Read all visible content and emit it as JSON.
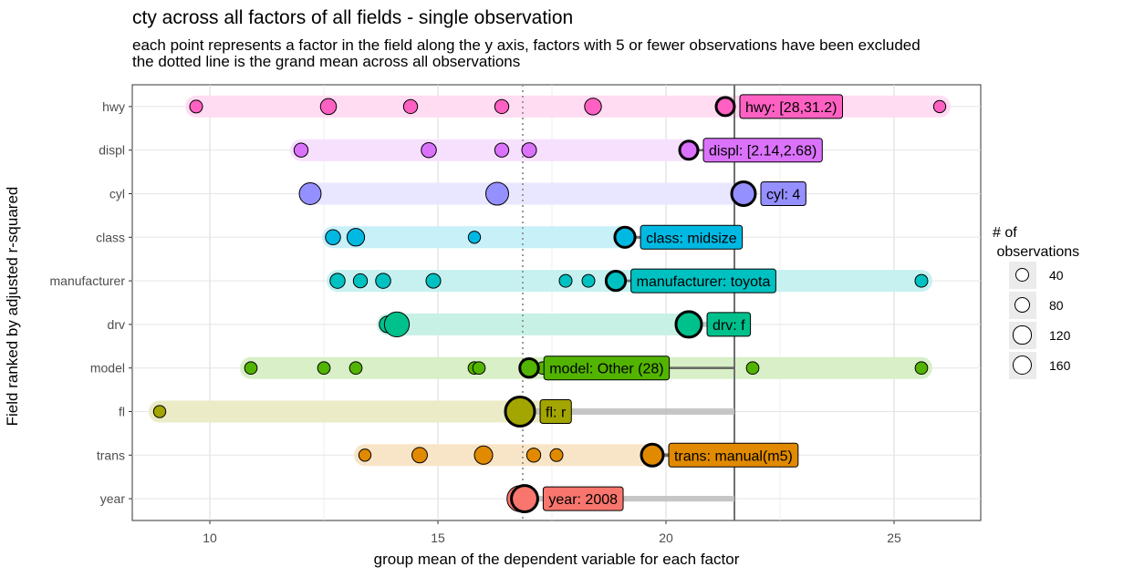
{
  "title": "cty across all factors of all fields - single observation",
  "subtitle": "each point represents a factor in the field along the y axis, factors with 5 or fewer observations have been excluded\nthe dotted line is the grand mean across all observations",
  "chart_data": {
    "type": "scatter",
    "xlabel": "group mean of the dependent variable for each factor",
    "ylabel": "Field ranked by adjusted r-squared",
    "xlim": [
      8.3,
      26.9
    ],
    "xticks": [
      10,
      15,
      20,
      25
    ],
    "grand_mean": 16.86,
    "observation_value": 21.5,
    "grid": true,
    "legend_position": "right",
    "legend": {
      "title": "# of\n observations",
      "entries": [
        {
          "label": "40",
          "value": 40
        },
        {
          "label": "80",
          "value": 80
        },
        {
          "label": "120",
          "value": 120
        },
        {
          "label": "160",
          "value": 160
        }
      ]
    },
    "fields": [
      {
        "name": "hwy",
        "color": "#FF61C3",
        "label": "hwy: [28,31.2)",
        "selected": 21.3,
        "selected_n": 25,
        "points": [
          {
            "x": 9.7,
            "n": 10
          },
          {
            "x": 12.6,
            "n": 25
          },
          {
            "x": 14.4,
            "n": 15
          },
          {
            "x": 16.4,
            "n": 15
          },
          {
            "x": 18.4,
            "n": 30
          },
          {
            "x": 26.0,
            "n": 8
          }
        ]
      },
      {
        "name": "displ",
        "color": "#DB72FB",
        "label": "displ: [2.14,2.68)",
        "selected": 20.5,
        "selected_n": 25,
        "points": [
          {
            "x": 12.0,
            "n": 15
          },
          {
            "x": 14.8,
            "n": 20
          },
          {
            "x": 16.4,
            "n": 15
          },
          {
            "x": 17.0,
            "n": 18
          }
        ]
      },
      {
        "name": "cyl",
        "color": "#93AA00",
        "label": "cyl: 4",
        "selected": 21.7,
        "selected_n": 80,
        "points": [
          {
            "x": 12.2,
            "n": 70
          },
          {
            "x": 16.3,
            "n": 80
          }
        ]
      },
      {
        "name": "class",
        "color": "#00B9E3",
        "label": "class: midsize",
        "selected": 19.1,
        "selected_n": 41,
        "points": [
          {
            "x": 12.7,
            "n": 20
          },
          {
            "x": 13.2,
            "n": 35
          },
          {
            "x": 15.8,
            "n": 8
          }
        ]
      },
      {
        "name": "manufacturer",
        "color": "#00C1C1",
        "label": "manufacturer: toyota",
        "selected": 18.9,
        "selected_n": 34,
        "points": [
          {
            "x": 12.8,
            "n": 20
          },
          {
            "x": 13.3,
            "n": 15
          },
          {
            "x": 13.8,
            "n": 20
          },
          {
            "x": 14.9,
            "n": 18
          },
          {
            "x": 17.8,
            "n": 10
          },
          {
            "x": 18.3,
            "n": 10
          },
          {
            "x": 25.6,
            "n": 10
          }
        ]
      },
      {
        "name": "drv",
        "color": "#00C08B",
        "label": "drv: f",
        "selected": 20.5,
        "selected_n": 106,
        "points": [
          {
            "x": 13.9,
            "n": 30
          },
          {
            "x": 14.1,
            "n": 103
          }
        ]
      },
      {
        "name": "model",
        "color": "#53B400",
        "label": "model: Other (28)",
        "selected": 17.0,
        "selected_n": 28,
        "points": [
          {
            "x": 10.9,
            "n": 9
          },
          {
            "x": 12.5,
            "n": 9
          },
          {
            "x": 13.2,
            "n": 9
          },
          {
            "x": 15.8,
            "n": 9
          },
          {
            "x": 15.9,
            "n": 9
          },
          {
            "x": 17.3,
            "n": 9
          },
          {
            "x": 21.9,
            "n": 9
          },
          {
            "x": 25.6,
            "n": 9
          }
        ]
      },
      {
        "name": "fl",
        "color": "#A58AFF",
        "label": "fl: r",
        "selected": 16.8,
        "selected_n": 168,
        "points": [
          {
            "x": 8.9,
            "n": 8
          },
          {
            "x": 17.6,
            "n": 52
          }
        ]
      },
      {
        "name": "trans",
        "color": "#E18A00",
        "label": "trans: manual(m5)",
        "selected": 19.7,
        "selected_n": 58,
        "points": [
          {
            "x": 13.4,
            "n": 8
          },
          {
            "x": 14.6,
            "n": 22
          },
          {
            "x": 16.0,
            "n": 40
          },
          {
            "x": 17.1,
            "n": 15
          },
          {
            "x": 17.6,
            "n": 10
          }
        ]
      },
      {
        "name": "year",
        "color": "#F8766D",
        "label": "year: 2008",
        "selected": 16.9,
        "selected_n": 117,
        "points": [
          {
            "x": 16.8,
            "n": 117
          }
        ]
      }
    ],
    "fill_overrides": {
      "fl": "#A3A500",
      "cyl": "#9590FF"
    }
  }
}
